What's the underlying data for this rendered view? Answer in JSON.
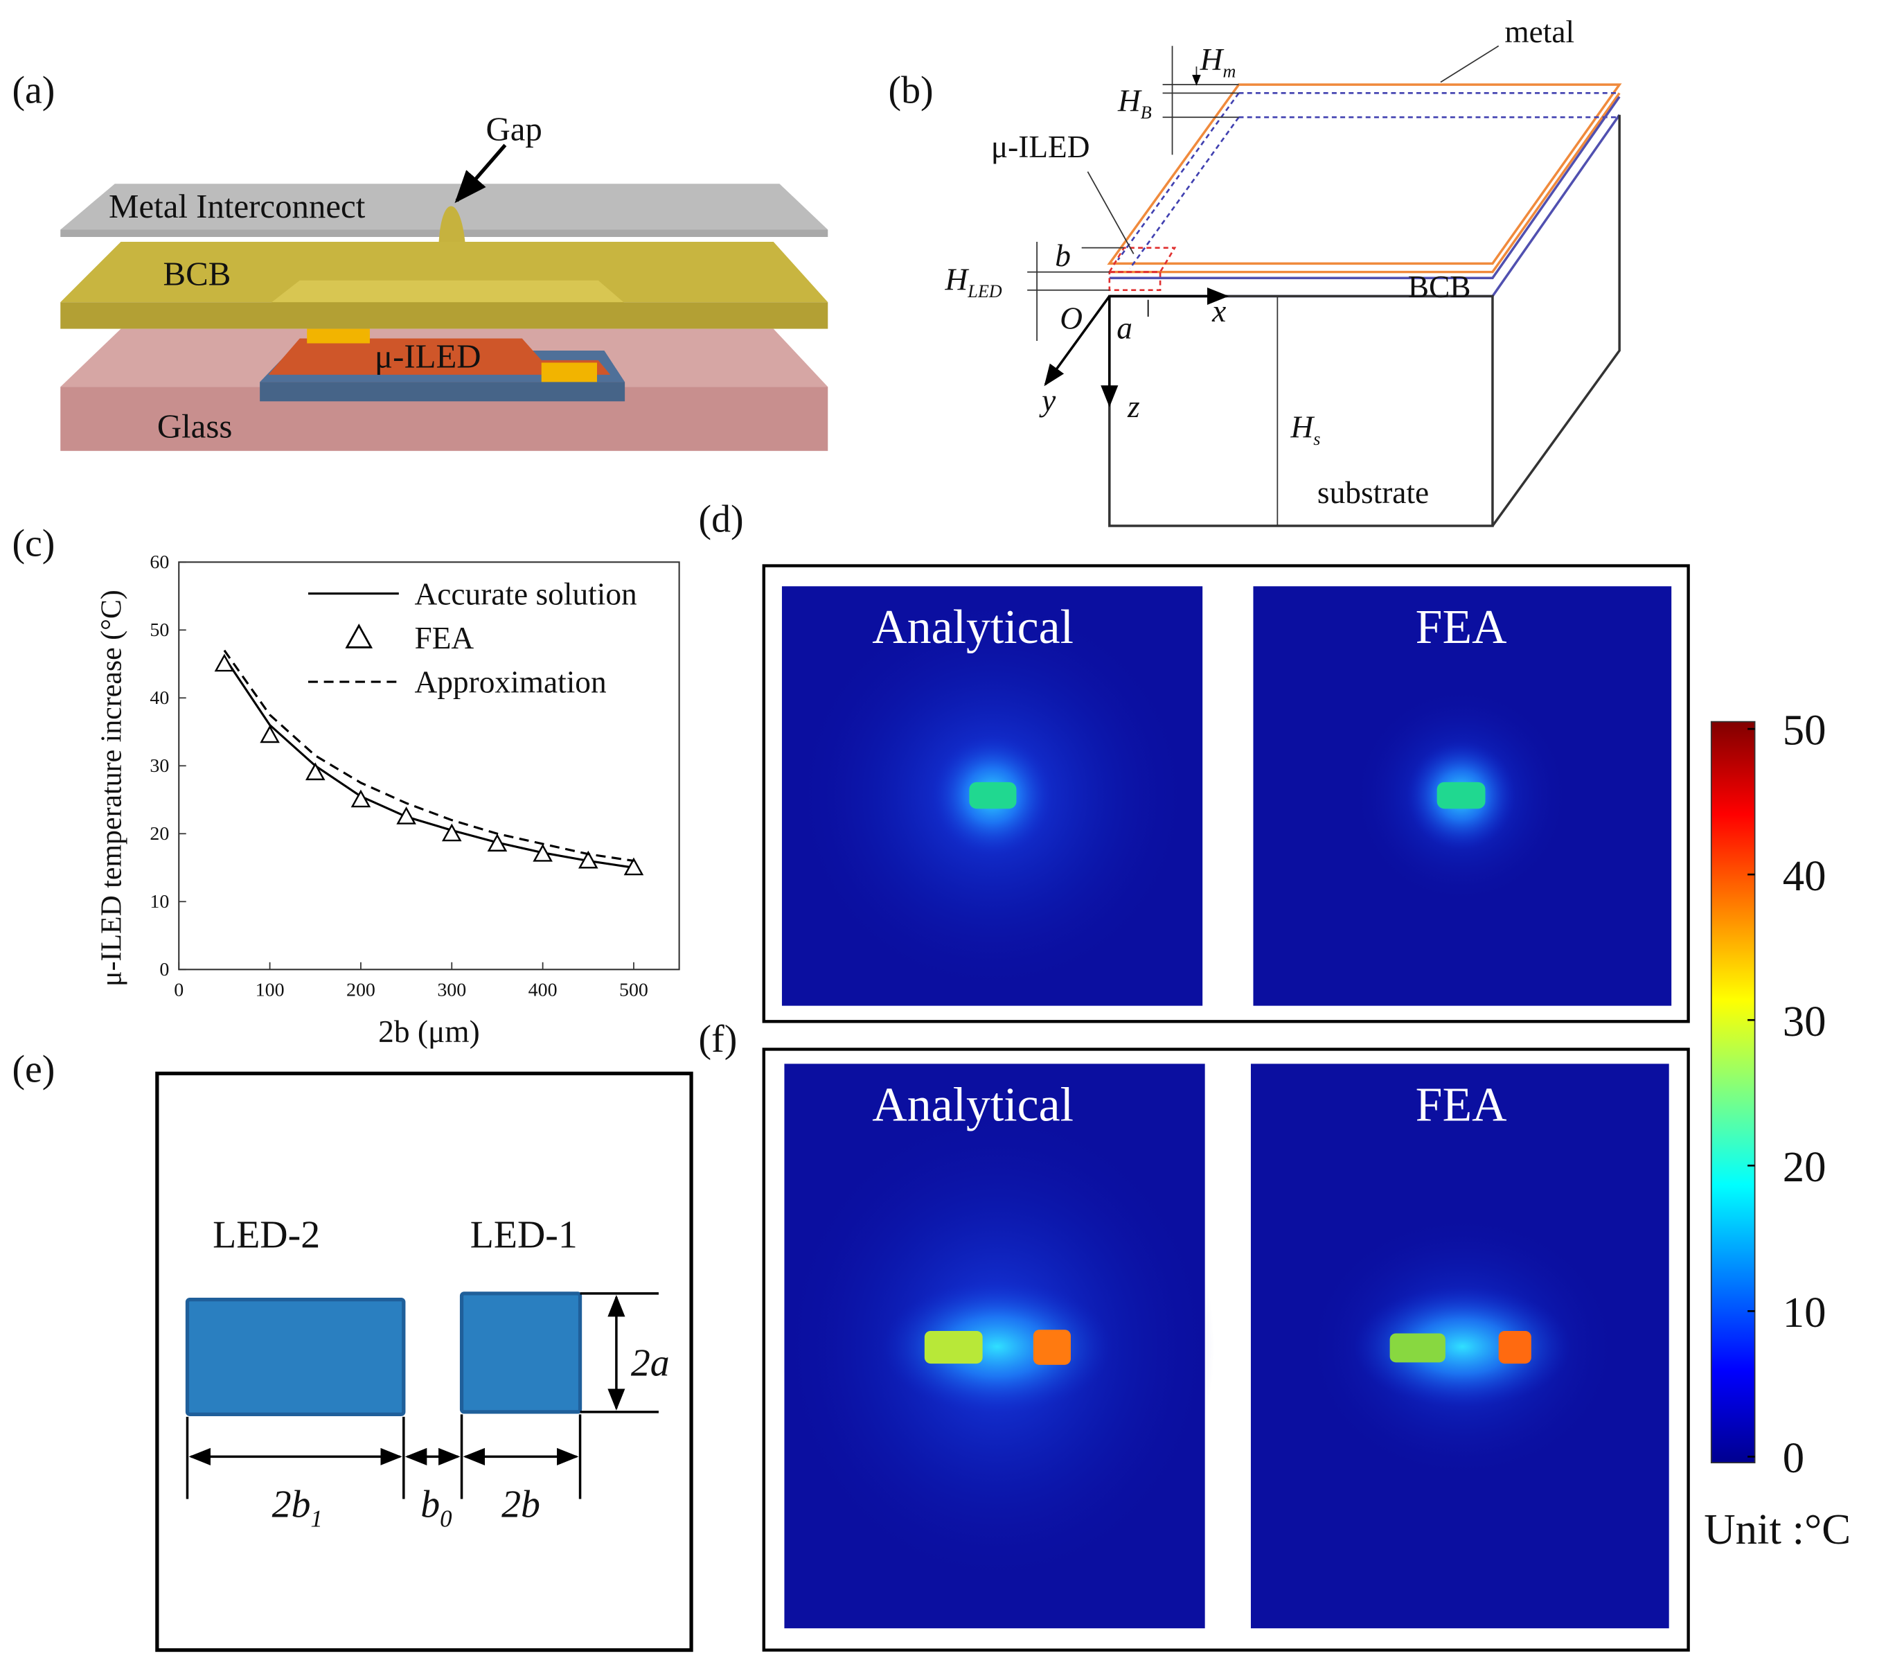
{
  "panel_labels": [
    "(a)",
    "(b)",
    "(c)",
    "(d)",
    "(e)",
    "(f)"
  ],
  "diagram_a": {
    "labels": [
      "Gap",
      "Metal Interconnect",
      "BCB",
      "μ-ILED",
      "Glass"
    ]
  },
  "diagram_b": {
    "labels": [
      {
        "text": "metal"
      },
      {
        "text": "H",
        "sub": "m"
      },
      {
        "text": "H",
        "sub": "B"
      },
      {
        "text": "μ-ILED"
      },
      {
        "text": "b"
      },
      {
        "text": "H",
        "sub": "LED"
      },
      {
        "text": "O"
      },
      {
        "text": "a"
      },
      {
        "text": "x"
      },
      {
        "text": "y"
      },
      {
        "text": "z"
      },
      {
        "text": "H",
        "sub": "s"
      },
      {
        "text": "BCB"
      },
      {
        "text": "substrate"
      }
    ]
  },
  "chart_data": {
    "type": "line",
    "x_label": "2b (μm)",
    "y_label": "μ-ILED temperature increase (°C)",
    "x": [
      50,
      100,
      150,
      200,
      250,
      300,
      350,
      400,
      450,
      500
    ],
    "series": [
      {
        "name": "Accurate solution",
        "color": "#000000",
        "line_style": "solid",
        "marker": "none",
        "values": [
          46,
          36,
          30,
          25.5,
          22.5,
          20.5,
          18.7,
          17.2,
          16,
          15
        ]
      },
      {
        "name": "FEA",
        "color": "#000000",
        "line_style": "none",
        "marker": "triangle",
        "values": [
          45,
          34.5,
          29,
          25,
          22.5,
          20,
          18.5,
          17,
          16,
          15
        ]
      },
      {
        "name": "Approximation",
        "color": "#000000",
        "line_style": "dashed",
        "marker": "none",
        "values": [
          47,
          37.5,
          31.5,
          27.5,
          24.5,
          22,
          20,
          18.5,
          17,
          16
        ]
      }
    ],
    "xlim": [
      0,
      550
    ],
    "ylim": [
      0,
      60
    ],
    "xticks": [
      0,
      100,
      200,
      300,
      400,
      500
    ],
    "yticks": [
      0,
      10,
      20,
      30,
      40,
      50,
      60
    ],
    "grid": false,
    "legend": "upper right"
  },
  "heatmap_d": {
    "titles": [
      "Analytical",
      "FEA"
    ]
  },
  "heatmap_f": {
    "titles": [
      "Analytical",
      "FEA"
    ]
  },
  "colorbar": {
    "lim": [
      0,
      50
    ],
    "ticks": [
      0,
      10,
      20,
      30,
      40,
      50
    ],
    "label": "Unit :°C"
  },
  "diagram_e": {
    "labels": [
      {
        "text": "LED-2"
      },
      {
        "text": "LED-1"
      },
      {
        "text": "2a"
      },
      {
        "text": "2b",
        "sub": "1"
      },
      {
        "text": "b",
        "sub": "0"
      },
      {
        "text": "2b"
      }
    ]
  }
}
